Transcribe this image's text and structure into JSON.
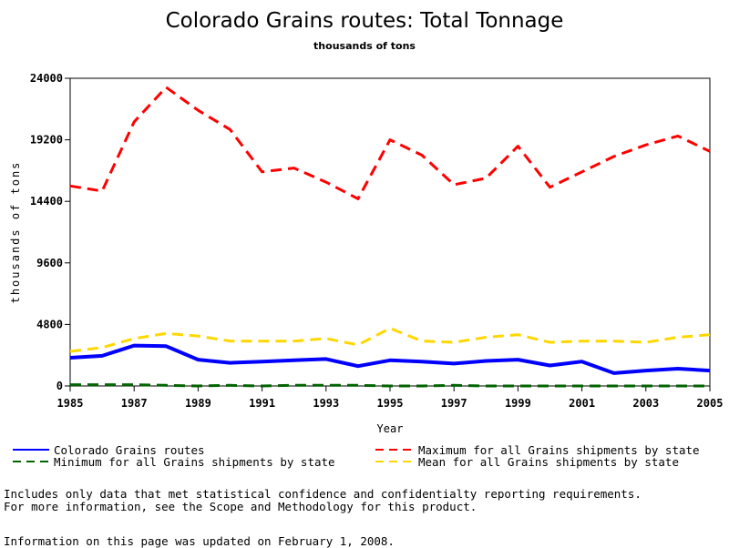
{
  "chart_data": {
    "type": "line",
    "title": "Colorado Grains routes: Total Tonnage",
    "subtitle": "thousands of tons",
    "xlabel": "Year",
    "ylabel": "thousands of tons",
    "x": [
      1985,
      1986,
      1987,
      1988,
      1989,
      1990,
      1991,
      1992,
      1993,
      1994,
      1995,
      1996,
      1997,
      1998,
      1999,
      2000,
      2001,
      2002,
      2003,
      2004,
      2005
    ],
    "xlim": [
      1985,
      2005
    ],
    "ylim": [
      0,
      24000
    ],
    "x_ticks": [
      "1985",
      "1987",
      "1989",
      "1991",
      "1993",
      "1995",
      "1997",
      "1999",
      "2001",
      "2003",
      "2005"
    ],
    "y_ticks": [
      "0",
      "4800",
      "9600",
      "14400",
      "19200",
      "24000"
    ],
    "series": [
      {
        "name": "Colorado Grains routes",
        "color": "#0000ff",
        "style": "solid",
        "values": [
          2200,
          2350,
          3150,
          3100,
          2050,
          1800,
          1900,
          2000,
          2100,
          1550,
          2000,
          1900,
          1750,
          1950,
          2050,
          1600,
          1900,
          1000,
          1200,
          1350,
          1200
        ]
      },
      {
        "name": "Maximum for all Grains shipments by state",
        "color": "#ff0000",
        "style": "dashed",
        "values": [
          15600,
          15200,
          20600,
          23300,
          21500,
          20000,
          16700,
          17000,
          15900,
          14600,
          19200,
          18000,
          15700,
          16200,
          18700,
          15500,
          16700,
          17900,
          18800,
          19500,
          18300
        ]
      },
      {
        "name": "Minimum for all Grains shipments by state",
        "color": "#006400",
        "style": "dashed",
        "values": [
          100,
          100,
          100,
          50,
          0,
          50,
          0,
          50,
          50,
          50,
          0,
          0,
          50,
          0,
          0,
          0,
          0,
          0,
          0,
          0,
          0
        ]
      },
      {
        "name": "Mean for all Grains shipments by state",
        "color": "#ffd700",
        "style": "dashed",
        "values": [
          2700,
          3000,
          3700,
          4100,
          3900,
          3500,
          3500,
          3500,
          3700,
          3200,
          4500,
          3500,
          3400,
          3800,
          4000,
          3400,
          3500,
          3500,
          3400,
          3800,
          4000
        ]
      }
    ],
    "legend": "bottom",
    "grid": false
  },
  "notes": {
    "line1": "Includes only data that met statistical confidence and confidentialty reporting requirements.",
    "line2": "For more information, see the Scope and Methodology for this product.",
    "updated": "Information on this page was updated on February 1, 2008."
  }
}
